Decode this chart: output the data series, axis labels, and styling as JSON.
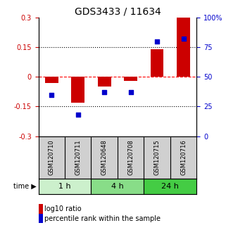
{
  "title": "GDS3433 / 11634",
  "samples": [
    "GSM120710",
    "GSM120711",
    "GSM120648",
    "GSM120708",
    "GSM120715",
    "GSM120716"
  ],
  "log10_ratio": [
    -0.03,
    -0.13,
    -0.05,
    -0.02,
    0.14,
    0.3
  ],
  "percentile_rank": [
    35,
    18,
    37,
    37,
    80,
    82
  ],
  "ylim_left": [
    -0.3,
    0.3
  ],
  "ylim_right": [
    0,
    100
  ],
  "yticks_left": [
    -0.3,
    -0.15,
    0,
    0.15,
    0.3
  ],
  "yticks_right": [
    0,
    25,
    50,
    75,
    100
  ],
  "ytick_labels_right": [
    "0",
    "25",
    "50",
    "75",
    "100%"
  ],
  "hlines_dotted": [
    0.15,
    -0.15
  ],
  "hline_dashed_color": "red",
  "bar_color": "#cc0000",
  "square_color": "#0000cc",
  "time_groups": [
    {
      "label": "1 h",
      "start": 0,
      "end": 2,
      "color": "#ccf0cc"
    },
    {
      "label": "4 h",
      "start": 2,
      "end": 4,
      "color": "#88dd88"
    },
    {
      "label": "24 h",
      "start": 4,
      "end": 6,
      "color": "#44cc44"
    }
  ],
  "sample_bg_color": "#d0d0d0",
  "legend_items": [
    {
      "label": "log10 ratio",
      "color": "#cc0000"
    },
    {
      "label": "percentile rank within the sample",
      "color": "#0000cc"
    }
  ],
  "bar_width": 0.5,
  "square_size": 25,
  "bg_color": "#ffffff",
  "title_fontsize": 10,
  "tick_fontsize": 7,
  "legend_fontsize": 7,
  "sample_fontsize": 6,
  "time_fontsize": 8
}
